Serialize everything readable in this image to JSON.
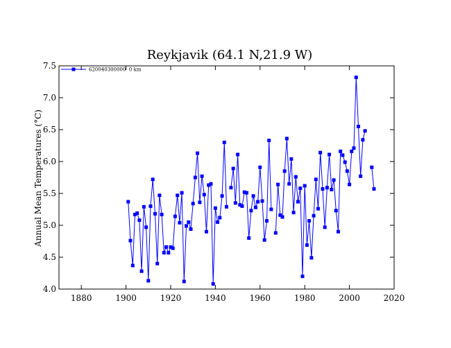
{
  "colors": {
    "series": "#0000ff",
    "axis": "#000000",
    "background": "#ffffff"
  },
  "chart_data": {
    "type": "line",
    "title": "Reykjavik (64.1 N,21.9 W)",
    "xlabel": "",
    "ylabel": "Annual Mean Temperatures (°C)",
    "xlim": [
      1870,
      2020
    ],
    "ylim": [
      4.0,
      7.5
    ],
    "xticks": [
      1880,
      1900,
      1920,
      1940,
      1960,
      1980,
      2000,
      2020
    ],
    "yticks": [
      4.0,
      4.5,
      5.0,
      5.5,
      6.0,
      6.5,
      7.0,
      7.5
    ],
    "xtick_labels": [
      "1880",
      "1900",
      "1920",
      "1940",
      "1960",
      "1980",
      "2000",
      "2020"
    ],
    "ytick_labels": [
      "4.0",
      "4.5",
      "5.0",
      "5.5",
      "6.0",
      "6.5",
      "7.0",
      "7.5"
    ],
    "grid": false,
    "legend_position": "top-left",
    "series": [
      {
        "name": "620040300000  0 km",
        "marker": "square",
        "segments": [
          {
            "x": [
              1901,
              1902,
              1903,
              1904,
              1905,
              1906,
              1907,
              1908,
              1909,
              1910,
              1911,
              1912,
              1913,
              1914,
              1915,
              1916,
              1917,
              1918,
              1919,
              1920,
              1921,
              1922,
              1923,
              1924,
              1925,
              1926,
              1927,
              1928,
              1929,
              1930,
              1931,
              1932,
              1933,
              1934,
              1935,
              1936,
              1937,
              1938,
              1939,
              1940,
              1941,
              1942,
              1943,
              1944,
              1945
            ],
            "y": [
              5.37,
              4.76,
              4.37,
              5.17,
              5.19,
              5.08,
              4.28,
              5.29,
              4.97,
              4.13,
              5.3,
              5.72,
              5.18,
              4.4,
              5.47,
              5.17,
              4.57,
              4.66,
              4.57,
              4.66,
              4.64,
              5.14,
              5.47,
              5.04,
              5.51,
              4.12,
              4.99,
              5.05,
              4.94,
              5.34,
              5.75,
              6.13,
              5.36,
              5.77,
              5.48,
              4.9,
              5.63,
              5.65,
              4.08,
              5.27,
              5.05,
              5.12,
              5.46,
              6.3,
              5.29
            ]
          },
          {
            "x": [
              1947,
              1948,
              1949,
              1950,
              1951,
              1952,
              1953,
              1954,
              1955,
              1956,
              1957,
              1958,
              1959,
              1960,
              1961,
              1962,
              1963,
              1964,
              1965
            ],
            "y": [
              5.59,
              5.89,
              5.35,
              6.11,
              5.32,
              5.3,
              5.52,
              5.51,
              4.8,
              5.23,
              5.46,
              5.28,
              5.37,
              5.91,
              5.38,
              4.77,
              5.07,
              6.33,
              5.25
            ]
          },
          {
            "x": [
              1967,
              1968,
              1969,
              1970,
              1971,
              1972,
              1973,
              1974,
              1975,
              1976,
              1977,
              1978,
              1979,
              1980,
              1981,
              1982,
              1983,
              1984,
              1985,
              1986,
              1987,
              1988,
              1989,
              1990,
              1991,
              1992,
              1993,
              1994,
              1995,
              1996,
              1997,
              1998,
              1999,
              2000,
              2001,
              2002,
              2003,
              2004,
              2005,
              2006,
              2007
            ],
            "y": [
              4.88,
              5.64,
              5.16,
              5.13,
              5.85,
              6.36,
              5.65,
              6.04,
              5.2,
              5.76,
              5.37,
              5.58,
              4.2,
              5.62,
              4.69,
              5.07,
              4.49,
              5.15,
              5.72,
              5.26,
              6.14,
              5.57,
              4.97,
              5.59,
              6.11,
              5.56,
              5.71,
              5.23,
              4.9,
              6.16,
              6.1,
              5.99,
              5.85,
              5.64,
              6.16,
              6.21,
              7.32,
              6.55,
              5.77,
              6.34,
              6.48
            ]
          },
          {
            "x": [
              2010,
              2011
            ],
            "y": [
              5.91,
              5.57
            ]
          }
        ]
      }
    ]
  }
}
